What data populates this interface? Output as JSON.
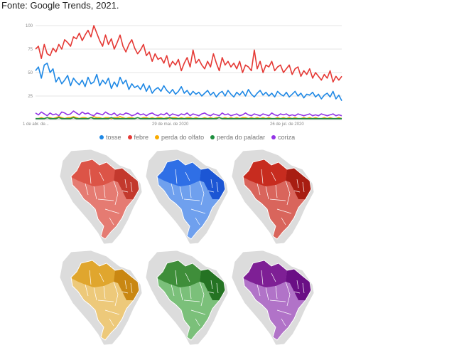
{
  "source_text": "Fonte: Google Trends, 2021.",
  "chart_data": {
    "type": "line",
    "ylim": [
      0,
      100
    ],
    "y_ticks": [
      "100",
      "75",
      "50",
      "25"
    ],
    "x_tick_labels": [
      "1 de abr. de...",
      "29 de mai. de 2020",
      "26 de jul. de 2020"
    ],
    "series": [
      {
        "name": "tosse",
        "color": "#1E88E5",
        "values": [
          52,
          56,
          44,
          58,
          60,
          50,
          54,
          40,
          45,
          38,
          42,
          47,
          36,
          44,
          40,
          37,
          42,
          35,
          45,
          38,
          40,
          48,
          36,
          42,
          38,
          44,
          33,
          40,
          35,
          45,
          38,
          42,
          32,
          38,
          34,
          36,
          32,
          38,
          30,
          36,
          28,
          32,
          34,
          30,
          36,
          31,
          28,
          32,
          27,
          30,
          35,
          28,
          31,
          26,
          30,
          27,
          29,
          25,
          28,
          31,
          26,
          29,
          24,
          28,
          30,
          25,
          31,
          27,
          24,
          29,
          26,
          30,
          25,
          32,
          27,
          24,
          28,
          31,
          26,
          29,
          25,
          28,
          24,
          30,
          27,
          25,
          29,
          24,
          27,
          30,
          25,
          28,
          23,
          27,
          26,
          29,
          24,
          27,
          22,
          26,
          28,
          24,
          30,
          22,
          26,
          20
        ]
      },
      {
        "name": "febre",
        "color": "#E53935",
        "values": [
          75,
          78,
          65,
          80,
          70,
          68,
          76,
          72,
          80,
          75,
          85,
          82,
          78,
          88,
          86,
          92,
          84,
          90,
          95,
          88,
          100,
          92,
          84,
          78,
          90,
          80,
          86,
          75,
          82,
          90,
          78,
          72,
          80,
          85,
          76,
          70,
          74,
          80,
          68,
          72,
          62,
          70,
          64,
          66,
          60,
          68,
          56,
          62,
          58,
          64,
          52,
          60,
          66,
          56,
          74,
          60,
          64,
          58,
          54,
          62,
          56,
          70,
          60,
          52,
          66,
          58,
          62,
          56,
          60,
          54,
          62,
          50,
          58,
          56,
          52,
          74,
          54,
          62,
          50,
          58,
          56,
          62,
          52,
          56,
          58,
          50,
          54,
          58,
          48,
          54,
          56,
          46,
          52,
          48,
          54,
          44,
          50,
          46,
          42,
          48,
          44,
          52,
          40,
          46,
          42,
          46
        ]
      },
      {
        "name": "perda do olfato",
        "color": "#F9AB00",
        "values": [
          1,
          1,
          2,
          1,
          2,
          2,
          1,
          2,
          3,
          2,
          1,
          2,
          2,
          3,
          2,
          1,
          2,
          2,
          1,
          2,
          3,
          2,
          2,
          1,
          2,
          2,
          1,
          2,
          2,
          3,
          2,
          1,
          2,
          2,
          1,
          2,
          1,
          2,
          2,
          1,
          2,
          1,
          2,
          2,
          1,
          2,
          1,
          2,
          2,
          1,
          2,
          1,
          2,
          2,
          1,
          2,
          1,
          1,
          2,
          1,
          2,
          1,
          2,
          2,
          1,
          2,
          1,
          2,
          1,
          2,
          1,
          2,
          2,
          1,
          2,
          1,
          2,
          1,
          2,
          1,
          2,
          1,
          1,
          2,
          1,
          2,
          1,
          2,
          1,
          2,
          1,
          1,
          2,
          1,
          2,
          1,
          2,
          1,
          1,
          2,
          1,
          2,
          1,
          1,
          2,
          1
        ]
      },
      {
        "name": "perda do paladar",
        "color": "#1E8E3E",
        "values": [
          1,
          1,
          1,
          1,
          2,
          1,
          1,
          1,
          2,
          1,
          1,
          1,
          1,
          2,
          1,
          1,
          1,
          1,
          1,
          2,
          1,
          1,
          1,
          1,
          1,
          1,
          2,
          1,
          1,
          1,
          1,
          1,
          1,
          1,
          1,
          2,
          1,
          1,
          1,
          1,
          1,
          1,
          1,
          1,
          1,
          1,
          2,
          1,
          1,
          1,
          1,
          1,
          1,
          1,
          1,
          1,
          1,
          1,
          1,
          1,
          1,
          1,
          1,
          2,
          1,
          1,
          1,
          1,
          1,
          1,
          1,
          1,
          1,
          1,
          1,
          1,
          1,
          1,
          1,
          1,
          1,
          1,
          1,
          1,
          1,
          1,
          1,
          1,
          1,
          1,
          1,
          1,
          1,
          1,
          1,
          1,
          1,
          1,
          1,
          1,
          1,
          1,
          1,
          1,
          1,
          1
        ]
      },
      {
        "name": "coriza",
        "color": "#9334E6",
        "values": [
          7,
          5,
          8,
          6,
          4,
          7,
          5,
          6,
          4,
          8,
          7,
          5,
          6,
          9,
          7,
          5,
          8,
          6,
          7,
          5,
          4,
          7,
          6,
          5,
          8,
          6,
          5,
          7,
          4,
          6,
          5,
          7,
          6,
          4,
          5,
          7,
          5,
          6,
          4,
          6,
          7,
          5,
          4,
          6,
          5,
          7,
          4,
          6,
          5,
          4,
          6,
          5,
          7,
          4,
          6,
          5,
          4,
          6,
          7,
          5,
          4,
          6,
          5,
          4,
          7,
          5,
          6,
          4,
          5,
          6,
          4,
          5,
          7,
          5,
          4,
          6,
          5,
          4,
          6,
          5,
          4,
          7,
          5,
          4,
          6,
          5,
          6,
          4,
          5,
          4,
          6,
          5,
          4,
          5,
          6,
          4,
          5,
          4,
          6,
          5,
          4,
          5,
          6,
          4,
          5,
          4
        ]
      }
    ]
  },
  "maps": [
    {
      "name": "map-febre-1",
      "fill": "#DC5447",
      "light": "#E57B72",
      "dark": "#C3392D"
    },
    {
      "name": "map-tosse",
      "fill": "#2F6FE6",
      "light": "#6FA0EE",
      "dark": "#1C56D4"
    },
    {
      "name": "map-febre-2",
      "fill": "#C72C1F",
      "light": "#D9655C",
      "dark": "#A81D12"
    },
    {
      "name": "map-olfato",
      "fill": "#E0A62E",
      "light": "#EDC97A",
      "dark": "#C98712"
    },
    {
      "name": "map-paladar",
      "fill": "#3F8E3A",
      "light": "#7BC07A",
      "dark": "#257323"
    },
    {
      "name": "map-coriza",
      "fill": "#7E1F95",
      "light": "#B173C8",
      "dark": "#6A0F85"
    }
  ]
}
